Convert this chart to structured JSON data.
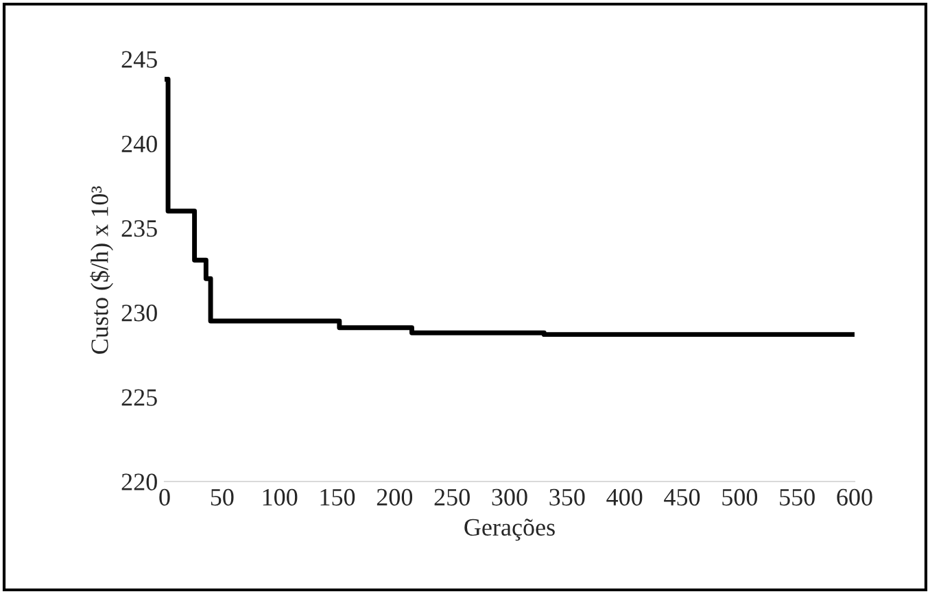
{
  "chart_data": {
    "type": "step",
    "xlabel": "Gerações",
    "ylabel": "Custo ($/h) x 10³",
    "x": [
      0,
      3,
      26,
      36,
      40,
      152,
      215,
      330,
      600
    ],
    "series": [
      {
        "color": "#000000",
        "values": [
          243.8,
          236.0,
          233.1,
          232.0,
          229.5,
          229.1,
          228.8,
          228.7,
          228.7
        ]
      }
    ],
    "xlim": [
      0,
      600
    ],
    "xticks": [
      0,
      50,
      100,
      150,
      200,
      250,
      300,
      350,
      400,
      450,
      500,
      550,
      600
    ],
    "ylim": [
      220,
      245
    ],
    "yticks": [
      220,
      225,
      230,
      235,
      240,
      245
    ],
    "grid": false,
    "legend": false
  }
}
